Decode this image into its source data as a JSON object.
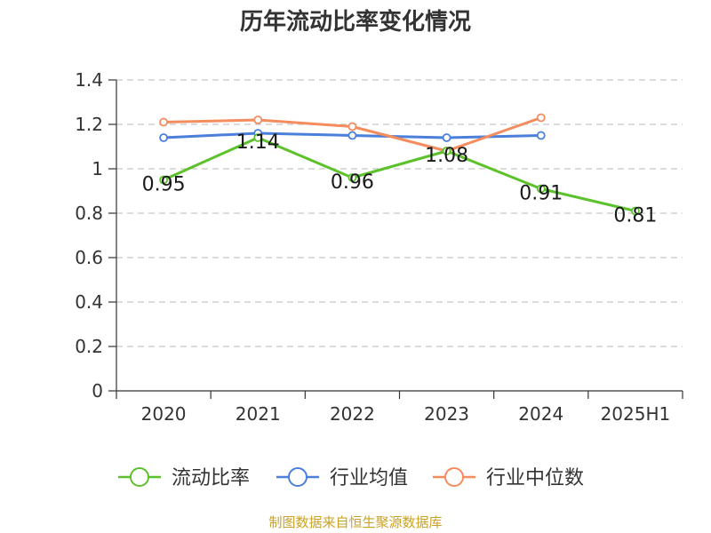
{
  "title": "历年流动比率变化情况",
  "source": "制图数据来自恒生聚源数据库",
  "colors": {
    "current_ratio": "#5cc22b",
    "industry_mean": "#4a7fdb",
    "industry_median": "#f48c5e"
  },
  "chart_data": {
    "type": "line",
    "title": "历年流动比率变化情况",
    "xlabel": "",
    "ylabel": "",
    "categories": [
      "2020",
      "2021",
      "2022",
      "2023",
      "2024",
      "2025H1"
    ],
    "ylim": [
      0,
      1.4
    ],
    "yticks": [
      "0",
      "0.2",
      "0.4",
      "0.6",
      "0.8",
      "1",
      "1.2",
      "1.4"
    ],
    "grid": true,
    "legend_position": "bottom",
    "series": [
      {
        "name": "流动比率",
        "values": [
          0.95,
          1.14,
          0.96,
          1.08,
          0.91,
          0.81
        ],
        "labels": [
          "0.95",
          "1.14",
          "0.96",
          "1.08",
          "0.91",
          "0.81"
        ],
        "color": "#5cc22b"
      },
      {
        "name": "行业均值",
        "values": [
          1.14,
          1.16,
          1.15,
          1.14,
          1.15,
          null
        ],
        "color": "#4a7fdb"
      },
      {
        "name": "行业中位数",
        "values": [
          1.21,
          1.22,
          1.19,
          1.08,
          1.23,
          null
        ],
        "color": "#f48c5e"
      }
    ]
  }
}
